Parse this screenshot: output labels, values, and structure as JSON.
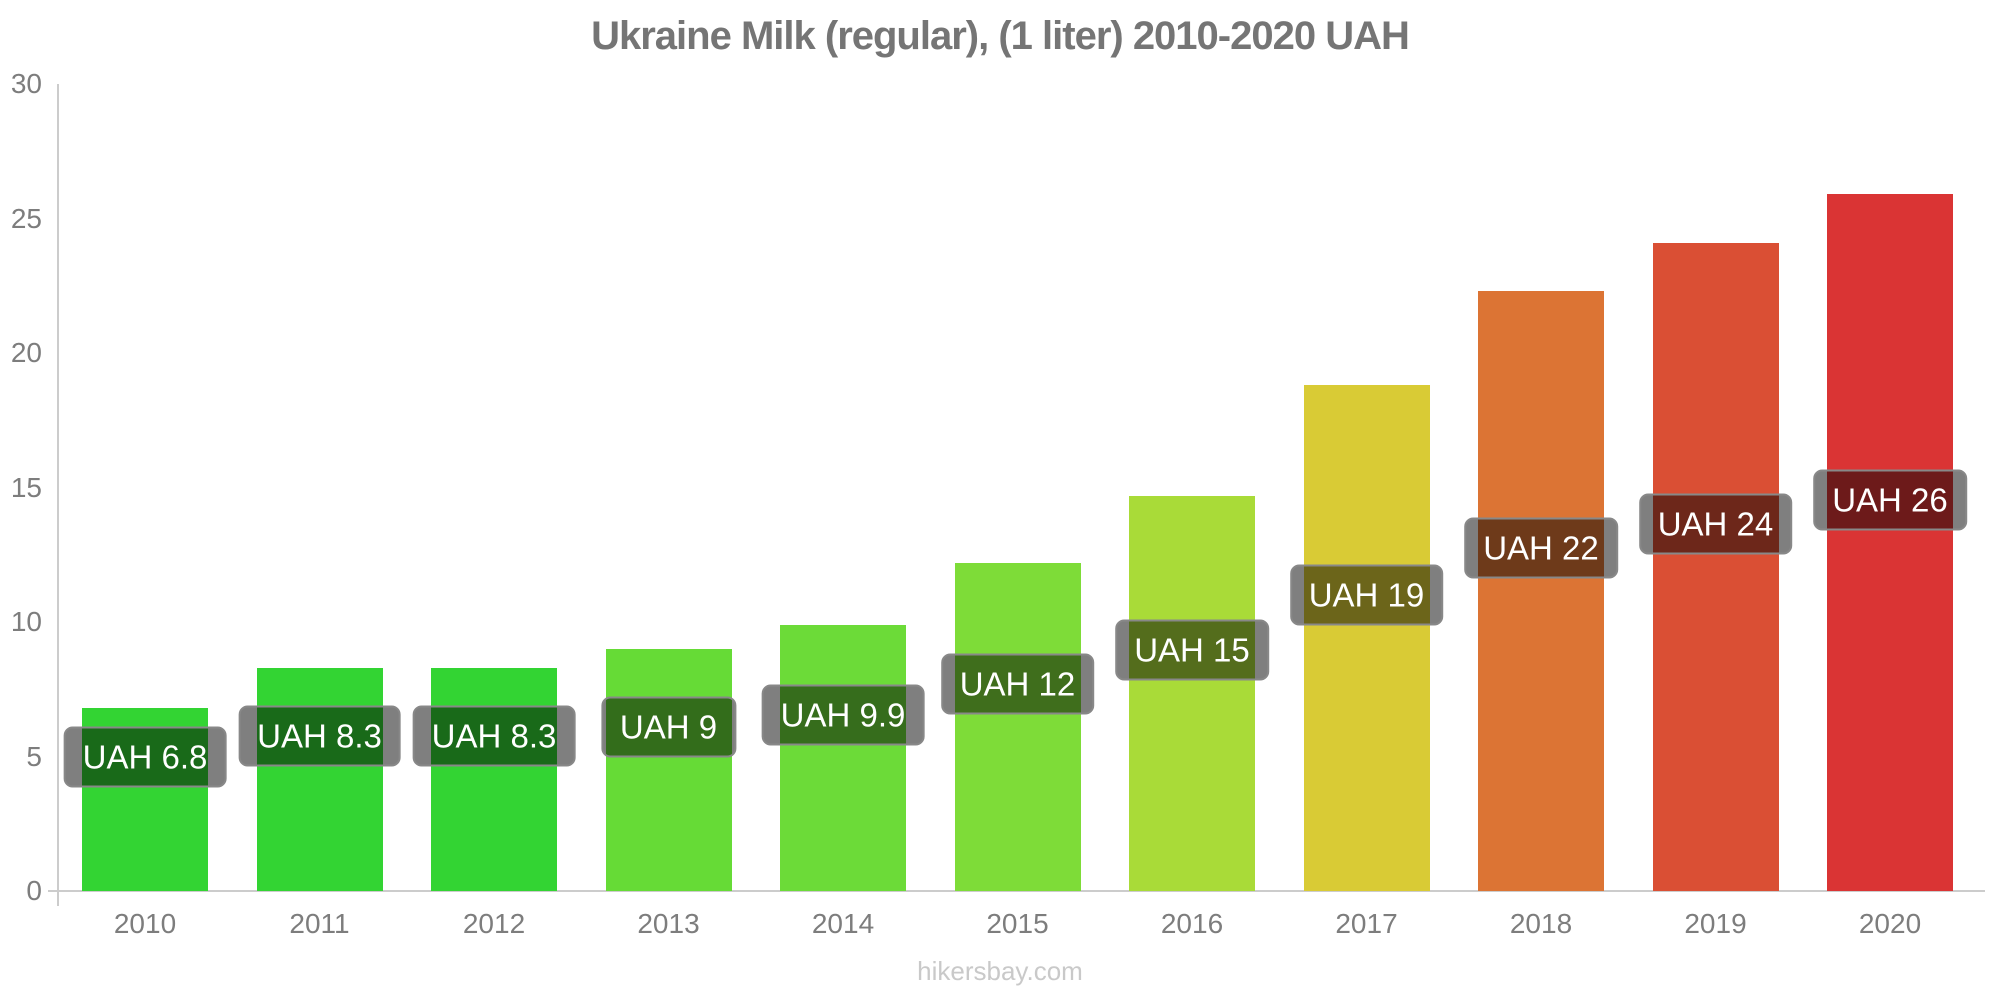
{
  "page": {
    "title": "Ukraine Milk (regular), (1 liter) 2010-2020 UAH",
    "footer": "hikersbay.com"
  },
  "colors": {
    "title_text": "#757575",
    "axis_line": "#cccccc",
    "tick_text": "#7d7d7d",
    "value_label_bg": "rgba(0,0,0,0.5)",
    "value_label_border": "#888888",
    "value_label_text": "#ffffff",
    "footer_text": "#c9c9c9"
  },
  "chart_data": {
    "type": "bar",
    "title": "Ukraine Milk (regular), (1 liter) 2010-2020 UAH",
    "xlabel": "",
    "ylabel": "",
    "ylim": [
      0,
      30
    ],
    "yticks": [
      0,
      5,
      10,
      15,
      20,
      25,
      30
    ],
    "grid": false,
    "legend": false,
    "categories": [
      "2010",
      "2011",
      "2012",
      "2013",
      "2014",
      "2015",
      "2016",
      "2017",
      "2018",
      "2019",
      "2020"
    ],
    "values": [
      6.8,
      8.3,
      8.3,
      9,
      9.9,
      12.2,
      14.7,
      18.8,
      22.3,
      24.1,
      25.9
    ],
    "bar_labels": [
      "UAH 6.8",
      "UAH 8.3",
      "UAH 8.3",
      "UAH 9",
      "UAH 9.9",
      "UAH 12",
      "UAH 15",
      "UAH 19",
      "UAH 22",
      "UAH 24",
      "UAH 26"
    ],
    "bar_colors": [
      "#33d433",
      "#33d433",
      "#33d433",
      "#66db36",
      "#6cdb38",
      "#7edc38",
      "#a9db38",
      "#d9cb35",
      "#dc7434",
      "#da4f34",
      "#da3434"
    ]
  }
}
